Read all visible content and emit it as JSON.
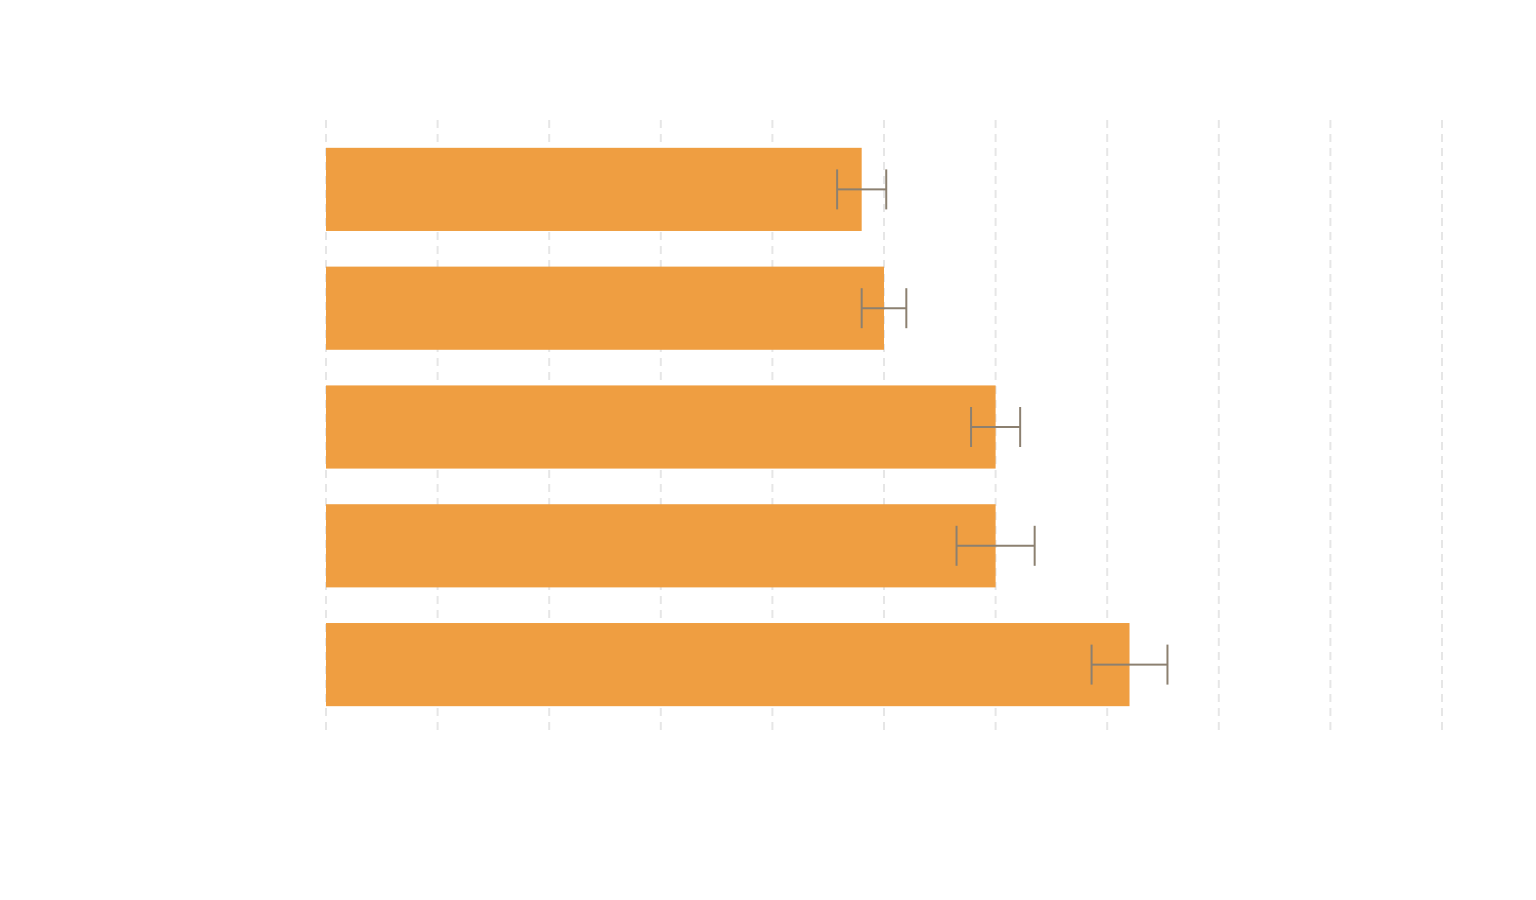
{
  "chart_data": {
    "type": "hbar",
    "categories": [
      null,
      null,
      null,
      null,
      null
    ],
    "values": [
      4.8,
      5.0,
      6.0,
      6.0,
      7.2
    ],
    "errors": [
      0.22,
      0.2,
      0.22,
      0.35,
      0.34
    ],
    "color": "#ef9e41",
    "error_color": "#8c8070",
    "xlim": [
      0,
      10
    ],
    "xticks": [
      0,
      1,
      2,
      3,
      4,
      5,
      6,
      7,
      8,
      9,
      10
    ],
    "grid": true
  }
}
